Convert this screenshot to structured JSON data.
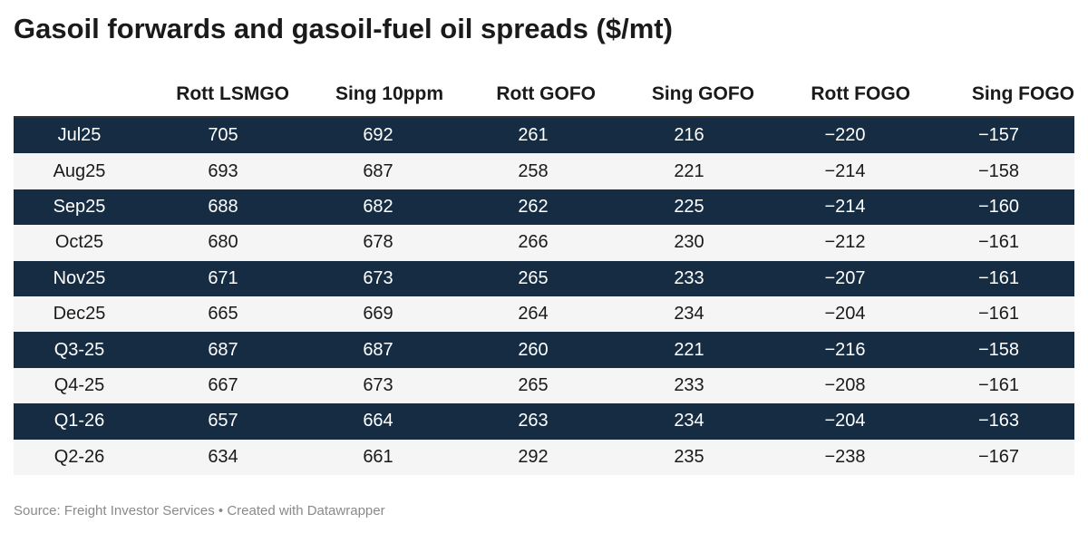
{
  "chart_data": {
    "type": "table",
    "title": "Gasoil forwards and gasoil-fuel oil spreads ($/mt)",
    "columns": [
      "",
      "Rott LSMGO",
      "Sing 10ppm",
      "Rott GOFO",
      "Sing GOFO",
      "Rott FOGO",
      "Sing FOGO"
    ],
    "rows": [
      [
        "Jul25",
        "705",
        "692",
        "261",
        "216",
        "−220",
        "−157"
      ],
      [
        "Aug25",
        "693",
        "687",
        "258",
        "221",
        "−214",
        "−158"
      ],
      [
        "Sep25",
        "688",
        "682",
        "262",
        "225",
        "−214",
        "−160"
      ],
      [
        "Oct25",
        "680",
        "678",
        "266",
        "230",
        "−212",
        "−161"
      ],
      [
        "Nov25",
        "671",
        "673",
        "265",
        "233",
        "−207",
        "−161"
      ],
      [
        "Dec25",
        "665",
        "669",
        "264",
        "234",
        "−204",
        "−161"
      ],
      [
        "Q3-25",
        "687",
        "687",
        "260",
        "221",
        "−216",
        "−158"
      ],
      [
        "Q4-25",
        "667",
        "673",
        "265",
        "233",
        "−208",
        "−161"
      ],
      [
        "Q1-26",
        "657",
        "664",
        "263",
        "234",
        "−204",
        "−163"
      ],
      [
        "Q2-26",
        "634",
        "661",
        "292",
        "235",
        "−238",
        "−167"
      ]
    ],
    "source": "Source: Freight Investor Services • Created with Datawrapper",
    "colors": {
      "dark_row": "#152c43",
      "light_row": "#f5f5f5"
    }
  }
}
